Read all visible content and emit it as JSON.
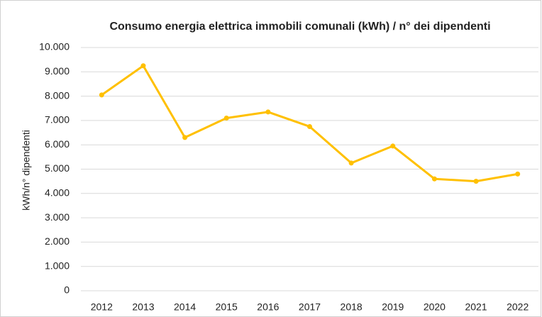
{
  "chart_data": {
    "type": "line",
    "title": "Consumo energia elettrica immobili comunali (kWh)  / n° dei dipendenti",
    "y_label": "kWh/n° dipendenti",
    "categories": [
      "2012",
      "2013",
      "2014",
      "2015",
      "2016",
      "2017",
      "2018",
      "2019",
      "2020",
      "2021",
      "2022"
    ],
    "values": [
      8050,
      9250,
      6300,
      7100,
      7350,
      6750,
      5250,
      5950,
      4600,
      4500,
      4800
    ],
    "color": "#ffc000",
    "ylim": [
      0,
      10000
    ],
    "yticks": [
      0,
      {
        "value": 1000,
        "label": "1.000"
      },
      {
        "value": 2000,
        "label": "2.000"
      },
      {
        "value": 3000,
        "label": "3.000"
      },
      {
        "value": 4000,
        "label": "4.000"
      },
      {
        "value": 5000,
        "label": "5.000"
      },
      {
        "value": 6000,
        "label": "6.000"
      },
      {
        "value": 7000,
        "label": "7.000"
      },
      {
        "value": 8000,
        "label": "8.000"
      },
      {
        "value": 9000,
        "label": "9.000"
      },
      {
        "value": 10000,
        "label": "10.000"
      }
    ],
    "grid": true
  }
}
